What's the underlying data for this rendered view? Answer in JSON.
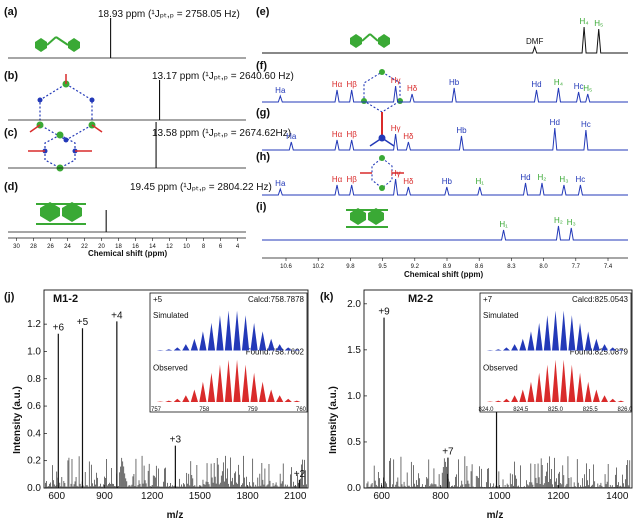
{
  "colors": {
    "blue": "#2339b8",
    "red": "#d92b2b",
    "green": "#3aa935",
    "black": "#111111"
  },
  "left_nmr": {
    "panels": [
      {
        "label": "(a)",
        "annotation": "18.93 ppm (¹Jₚₜ,ₚ = 2758.05 Hz)",
        "peak_ppm": 18.93
      },
      {
        "label": "(b)",
        "annotation": "13.17 ppm (¹Jₚₜ,ₚ = 2640.60 Hz)",
        "peak_ppm": 13.17
      },
      {
        "label": "(c)",
        "annotation": "13.58 ppm (¹Jₚₜ,ₚ = 2674.62Hz)",
        "peak_ppm": 13.58
      },
      {
        "label": "(d)",
        "annotation": "19.45 ppm (¹Jₚₜ,ₚ = 2804.22 Hz)",
        "peak_ppm": 19.45
      }
    ],
    "ticks": [
      "30",
      "28",
      "26",
      "24",
      "22",
      "20",
      "18",
      "16",
      "14",
      "12",
      "10",
      "8",
      "6",
      "4"
    ],
    "xlabel": "Chemical shift (ppm)"
  },
  "right_nmr": {
    "panels": [
      {
        "label": "(e)",
        "peaks": [
          {
            "t": "DMF",
            "c": "black"
          },
          {
            "t": "H₄",
            "c": "green"
          },
          {
            "t": "H₅",
            "c": "green"
          }
        ]
      },
      {
        "label": "(f)",
        "peaks": [
          {
            "t": "Ha",
            "c": "blue"
          },
          {
            "t": "Hα",
            "c": "red"
          },
          {
            "t": "Hβ",
            "c": "red"
          },
          {
            "t": "Hγ",
            "c": "red"
          },
          {
            "t": "Hδ",
            "c": "red"
          },
          {
            "t": "Hb",
            "c": "blue"
          },
          {
            "t": "Hd",
            "c": "blue"
          },
          {
            "t": "H₄",
            "c": "green"
          },
          {
            "t": "Hc",
            "c": "blue"
          },
          {
            "t": "H₅",
            "c": "green"
          }
        ]
      },
      {
        "label": "(g)",
        "peaks": [
          {
            "t": "Ha",
            "c": "blue"
          },
          {
            "t": "Hα",
            "c": "red"
          },
          {
            "t": "Hβ",
            "c": "red"
          },
          {
            "t": "Hγ",
            "c": "red"
          },
          {
            "t": "Hδ",
            "c": "red"
          },
          {
            "t": "Hb",
            "c": "blue"
          },
          {
            "t": "Hd",
            "c": "blue"
          },
          {
            "t": "Hc",
            "c": "blue"
          }
        ]
      },
      {
        "label": "(h)",
        "peaks": [
          {
            "t": "Ha",
            "c": "blue"
          },
          {
            "t": "Hα",
            "c": "red"
          },
          {
            "t": "Hβ",
            "c": "red"
          },
          {
            "t": "Hγ",
            "c": "red"
          },
          {
            "t": "Hδ",
            "c": "red"
          },
          {
            "t": "Hb",
            "c": "blue"
          },
          {
            "t": "H₁",
            "c": "green"
          },
          {
            "t": "Hd",
            "c": "blue"
          },
          {
            "t": "H₂",
            "c": "green"
          },
          {
            "t": "H₃",
            "c": "green"
          },
          {
            "t": "Hc",
            "c": "blue"
          }
        ]
      },
      {
        "label": "(i)",
        "peaks": [
          {
            "t": "H₁",
            "c": "green"
          },
          {
            "t": "H₂",
            "c": "green"
          },
          {
            "t": "H₃",
            "c": "green"
          }
        ]
      }
    ],
    "ticks": [
      "10.6",
      "10.2",
      "9.8",
      "9.5",
      "9.2",
      "8.9",
      "8.6",
      "8.3",
      "8.0",
      "7.7",
      "7.4"
    ],
    "xlabel": "Chemical shift (ppm)"
  },
  "chart_data": [
    {
      "type": "bar",
      "panel": "(j)",
      "title": "M1-2",
      "xlabel": "m/z",
      "ylabel": "Intensity (a.u.)",
      "xlim": [
        520,
        2180
      ],
      "ylim": [
        0,
        1.45
      ],
      "xticks": [
        600,
        900,
        1200,
        1500,
        1800,
        2100
      ],
      "yticks": [
        0.0,
        0.2,
        0.4,
        0.6,
        0.8,
        1.0,
        1.2
      ],
      "peaks": [
        {
          "x": 610,
          "y": 1.13,
          "label": "+6"
        },
        {
          "x": 762,
          "y": 1.17,
          "label": "+5"
        },
        {
          "x": 978,
          "y": 1.22,
          "label": "+4"
        },
        {
          "x": 1346,
          "y": 0.31,
          "label": "+3"
        },
        {
          "x": 2126,
          "y": 0.06,
          "label": "+2"
        }
      ],
      "inset": {
        "charge": "+5",
        "calcd": "Calcd:758.7878",
        "found": "Found:758.7602",
        "simulated_label": "Simulated",
        "observed_label": "Observed",
        "xticks": [
          "757",
          "758",
          "759",
          "760"
        ]
      }
    },
    {
      "type": "bar",
      "panel": "(k)",
      "title": "M2-2",
      "xlabel": "m/z",
      "ylabel": "Intensity (a.u.)",
      "xlim": [
        540,
        1450
      ],
      "ylim": [
        0,
        2.15
      ],
      "xticks": [
        600,
        800,
        1000,
        1200,
        1400
      ],
      "yticks": [
        0.0,
        0.5,
        1.0,
        1.5,
        2.0
      ],
      "peaks": [
        {
          "x": 608,
          "y": 1.85,
          "label": "+9"
        },
        {
          "x": 825,
          "y": 0.33,
          "label": "+7"
        },
        {
          "x": 990,
          "y": 1.72,
          "label": ""
        }
      ],
      "inset": {
        "charge": "+7",
        "calcd": "Calcd:825.0543",
        "found": "Found:825.0879",
        "simulated_label": "Simulated",
        "observed_label": "Observed",
        "xticks": [
          "824.0",
          "824.5",
          "825.0",
          "825.5",
          "826.0"
        ]
      }
    }
  ]
}
